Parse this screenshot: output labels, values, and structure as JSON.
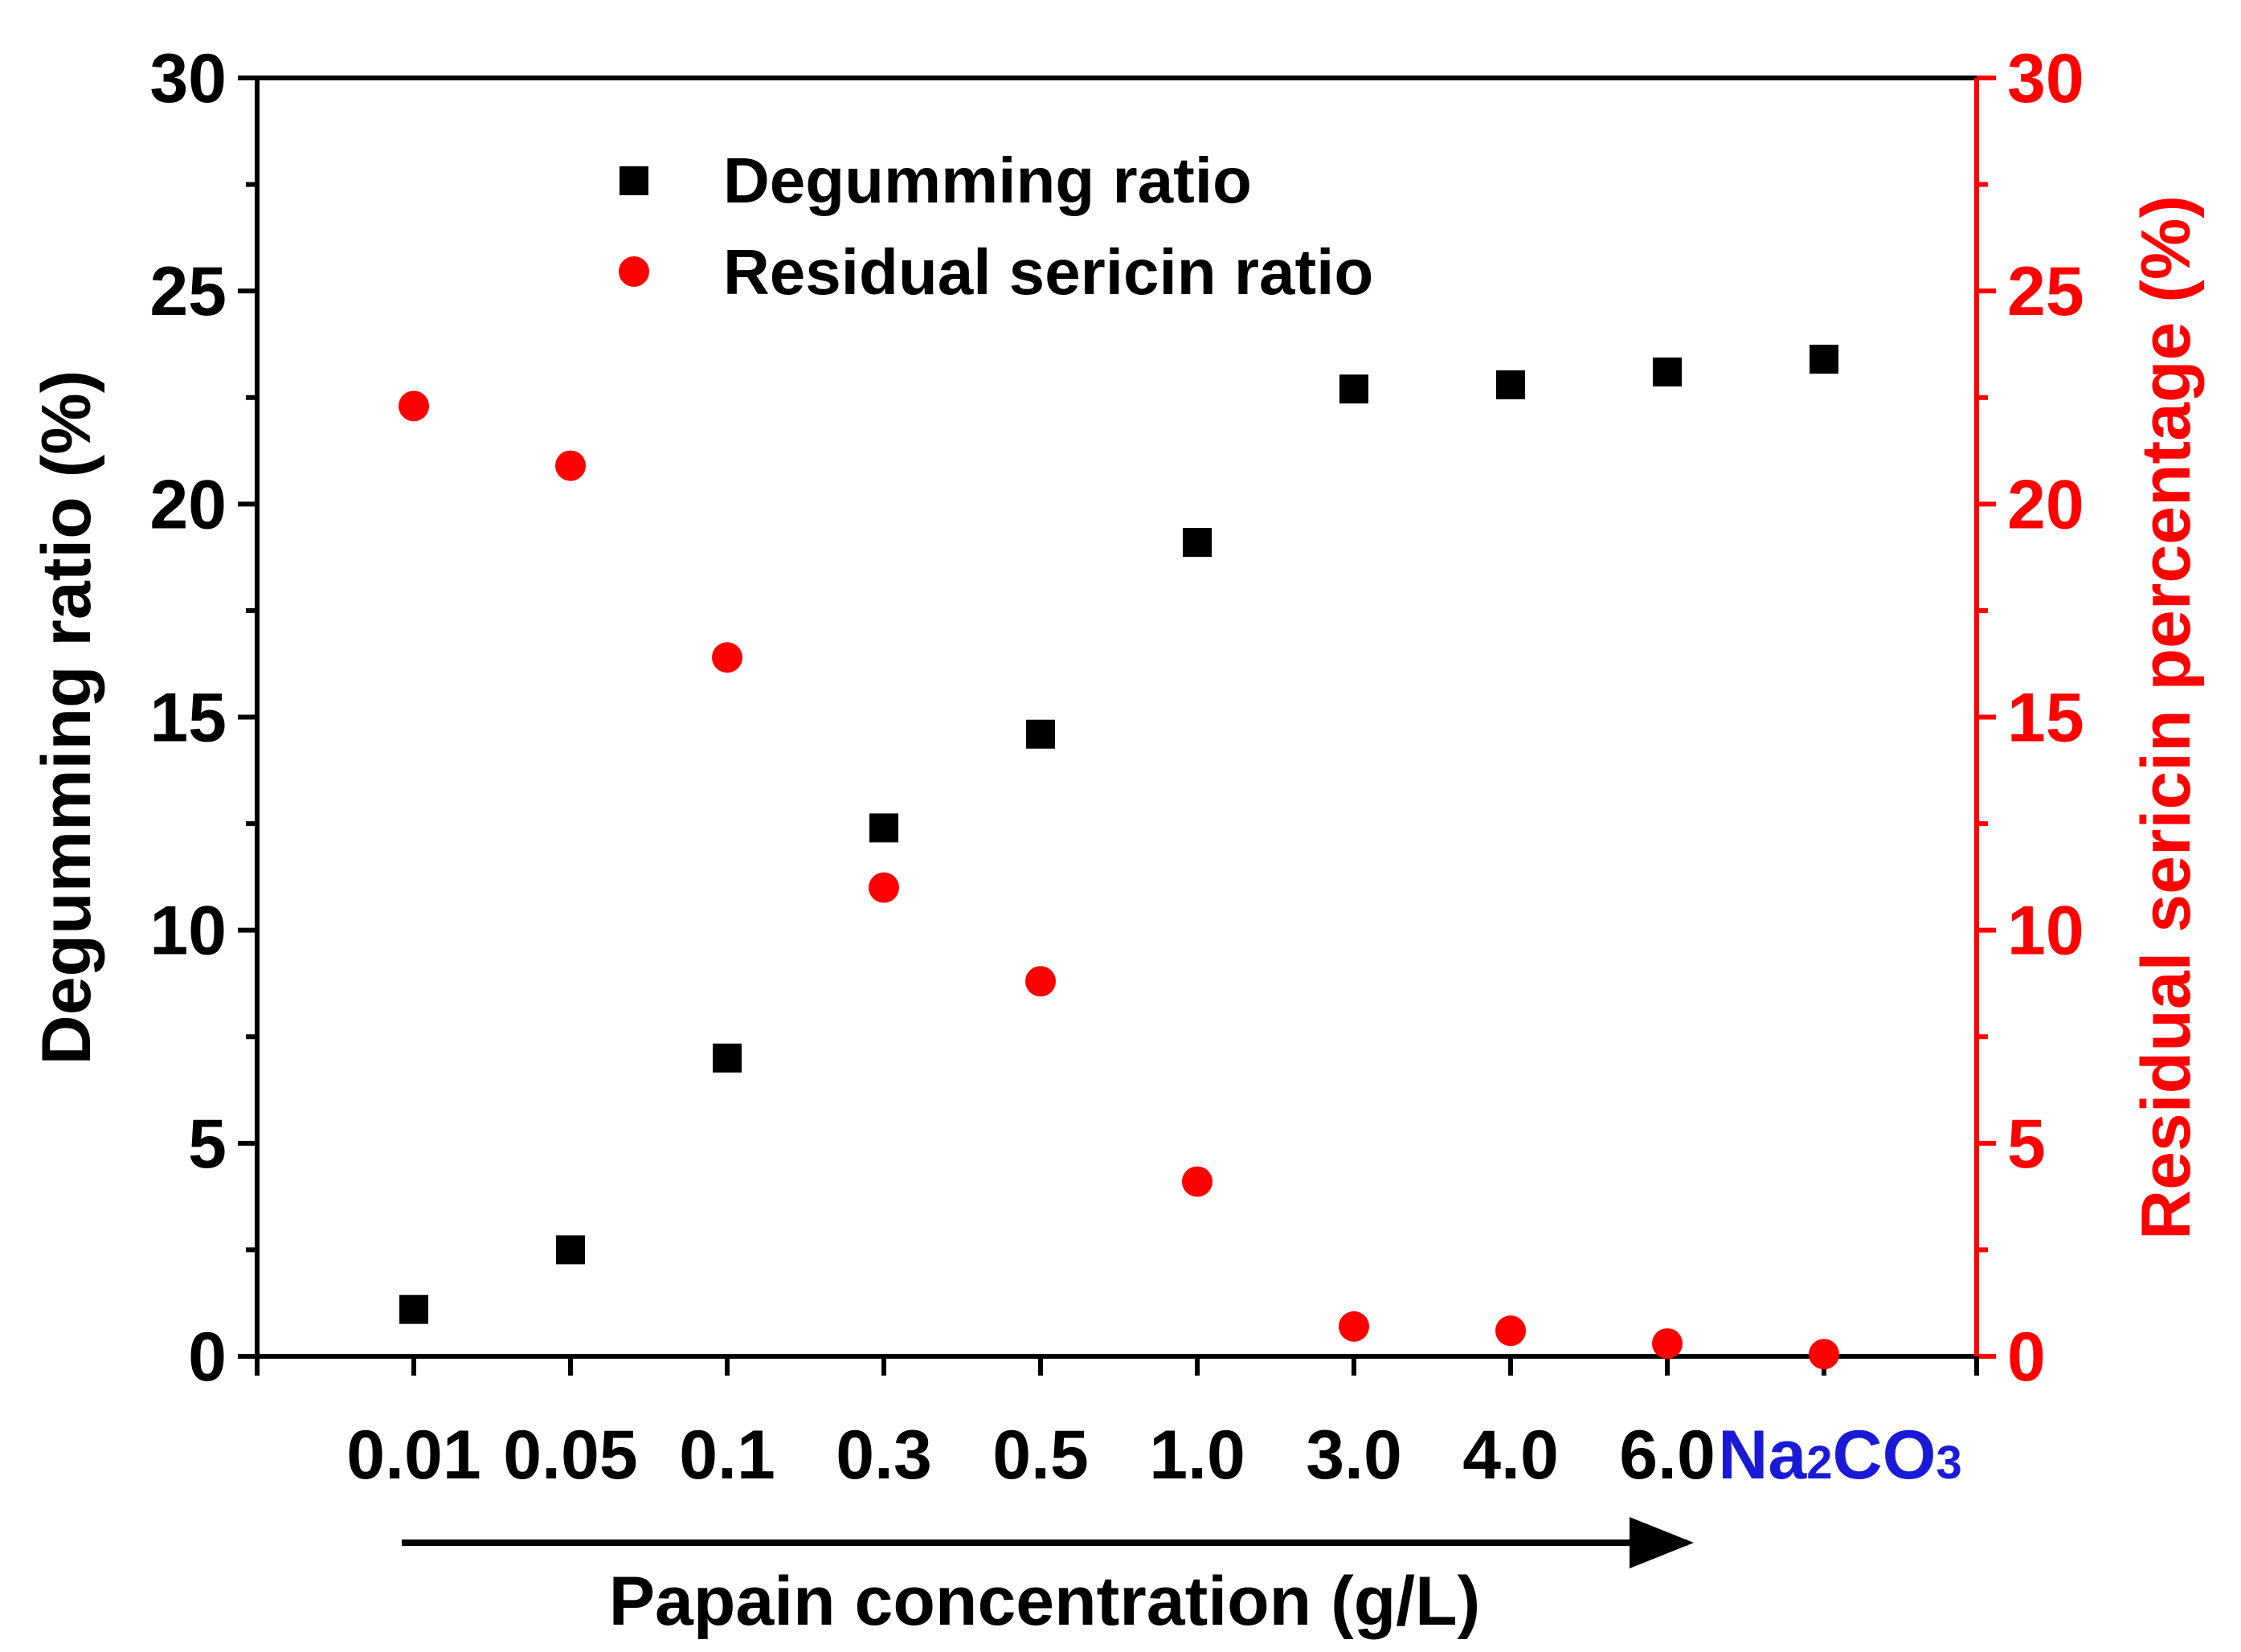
{
  "chart_data": {
    "type": "scatter",
    "x_label": "Papain concentration (g/L)",
    "y_left_label": "Degumming ratio (%)",
    "y_right_label": "Residual sericin percentage (%)",
    "y_left_range": [
      0,
      30
    ],
    "y_right_range": [
      0,
      30
    ],
    "y_ticks": [
      "0",
      "5",
      "10",
      "15",
      "20",
      "25",
      "30"
    ],
    "categories": [
      "0.01",
      "0.05",
      "0.1",
      "0.3",
      "0.5",
      "1.0",
      "3.0",
      "4.0",
      "6.0",
      "Na2CO3"
    ],
    "special_category": {
      "base": "Na",
      "sub1": "2",
      "mid": "CO",
      "sub2": "3"
    },
    "series": [
      {
        "name": "Degumming ratio",
        "axis": "left",
        "marker": "square",
        "color": "#000000",
        "values": [
          1.1,
          2.5,
          7.0,
          12.4,
          14.6,
          19.1,
          22.7,
          22.8,
          23.1,
          23.4
        ]
      },
      {
        "name": "Residual sericin ratio",
        "axis": "right",
        "marker": "circle",
        "color": "#ff0000",
        "values": [
          22.3,
          20.9,
          16.4,
          11.0,
          8.8,
          4.1,
          0.7,
          0.6,
          0.3,
          0.05
        ]
      }
    ],
    "legend_position": "top-center",
    "grid": false,
    "colors": {
      "left_axis": "#000000",
      "right_axis": "#ff0000",
      "special_category": "#1a1ad6"
    }
  }
}
